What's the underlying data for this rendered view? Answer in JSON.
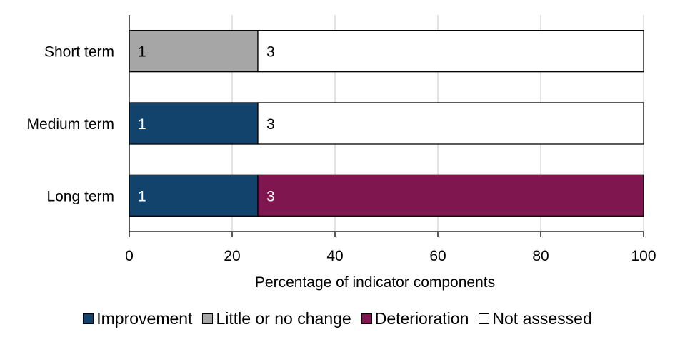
{
  "chart_data": {
    "type": "bar",
    "orientation": "horizontal",
    "stacked": true,
    "categories": [
      "Short term",
      "Medium term",
      "Long term"
    ],
    "xlabel": "Percentage of indicator components",
    "xlim": [
      0,
      100
    ],
    "xticks": [
      0,
      20,
      40,
      60,
      80,
      100
    ],
    "grid": "vertical",
    "legend_position": "bottom",
    "series": [
      {
        "name": "Improvement",
        "color": "#12436D",
        "values": [
          0,
          25,
          25
        ],
        "labels": [
          "",
          "1",
          "1"
        ]
      },
      {
        "name": "Little or no change",
        "color": "#A6A6A6",
        "values": [
          25,
          0,
          0
        ],
        "labels": [
          "1",
          "",
          ""
        ]
      },
      {
        "name": "Deterioration",
        "color": "#801650",
        "values": [
          0,
          0,
          75
        ],
        "labels": [
          "",
          "",
          "3"
        ]
      },
      {
        "name": "Not assessed",
        "color": "#FFFFFF",
        "values": [
          75,
          75,
          0
        ],
        "labels": [
          "3",
          "3",
          ""
        ]
      }
    ]
  }
}
